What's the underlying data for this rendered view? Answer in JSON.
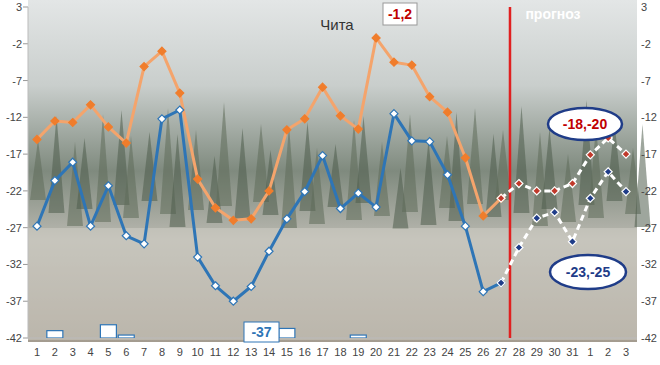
{
  "chart_data": {
    "type": "line",
    "title": "Чита",
    "categories": [
      "1",
      "2",
      "3",
      "4",
      "5",
      "6",
      "7",
      "8",
      "9",
      "10",
      "11",
      "12",
      "13",
      "14",
      "15",
      "16",
      "17",
      "18",
      "19",
      "20",
      "21",
      "22",
      "23",
      "24",
      "25",
      "26",
      "27",
      "28",
      "29",
      "30",
      "31",
      "1",
      "2",
      "3"
    ],
    "ylim": [
      -42,
      3
    ],
    "yticks": [
      3,
      -2,
      -7,
      -12,
      -17,
      -22,
      -27,
      -32,
      -37,
      -42
    ],
    "grid": false,
    "series": [
      {
        "type": "line",
        "color": "#f4a46c",
        "marker": "diamond",
        "line_style": "solid",
        "values": [
          -15,
          -12.5,
          -12.7,
          -10.3,
          -13.3,
          -15.5,
          -5.1,
          -3,
          -8.7,
          -20.4,
          -24.3,
          -26,
          -25.8,
          -22,
          -13.7,
          -12.2,
          -7.9,
          -11.8,
          -13.6,
          -1.2,
          -4.5,
          -4.9,
          -9.2,
          -11.3,
          -17.5,
          -25.4,
          -23,
          null,
          null,
          null,
          null,
          null,
          null,
          null
        ]
      },
      {
        "type": "line",
        "color": "#2e75b6",
        "marker": "diamond",
        "line_style": "solid",
        "values": [
          -26.8,
          -20.6,
          -18.1,
          -26.8,
          -21.3,
          -28.1,
          -29.2,
          -12.2,
          -11,
          -31,
          -34.9,
          -37,
          -35,
          -30.2,
          -25.8,
          -22.1,
          -17.2,
          -24.4,
          -22.3,
          -24.2,
          -11.5,
          -15.2,
          -15.3,
          -19.8,
          -26.8,
          -35.7,
          -34.5,
          null,
          null,
          null,
          null,
          null,
          null,
          null
        ]
      },
      {
        "type": "line",
        "color": "#ffffff",
        "marker": "diamond",
        "line_style": "dashed",
        "values": [
          null,
          null,
          null,
          null,
          null,
          null,
          null,
          null,
          null,
          null,
          null,
          null,
          null,
          null,
          null,
          null,
          null,
          null,
          null,
          null,
          null,
          null,
          null,
          null,
          null,
          null,
          -23,
          -21,
          -22,
          -22,
          -21,
          -17.1,
          -14.8,
          -17
        ]
      },
      {
        "type": "line",
        "color": "#ffffff",
        "marker": "diamond",
        "line_style": "dashed",
        "values": [
          null,
          null,
          null,
          null,
          null,
          null,
          null,
          null,
          null,
          null,
          null,
          null,
          null,
          null,
          null,
          null,
          null,
          null,
          null,
          null,
          null,
          null,
          null,
          null,
          null,
          null,
          -34.5,
          -29.7,
          -25.7,
          -24.9,
          -28.9,
          -23,
          -19.4,
          -22.1
        ]
      },
      {
        "type": "bar",
        "color": "#ffffff",
        "values": [
          null,
          -41,
          null,
          null,
          -40.2,
          -41.6,
          null,
          null,
          null,
          null,
          null,
          null,
          null,
          null,
          -40.7,
          null,
          null,
          null,
          -41.6,
          null,
          null,
          null,
          null,
          null,
          null,
          null,
          null,
          null,
          null,
          null,
          null,
          null,
          null,
          null
        ]
      }
    ],
    "annotations": [
      {
        "text": "-1,2",
        "color": "#c00000"
      },
      {
        "text": "-37",
        "color": "#2e75b6"
      },
      {
        "text": "-18,-20",
        "color": "#c00000"
      },
      {
        "text": "-23,-25",
        "color": "#1f3c88"
      },
      {
        "text": "прогноз",
        "color": "#ffffff"
      }
    ]
  }
}
